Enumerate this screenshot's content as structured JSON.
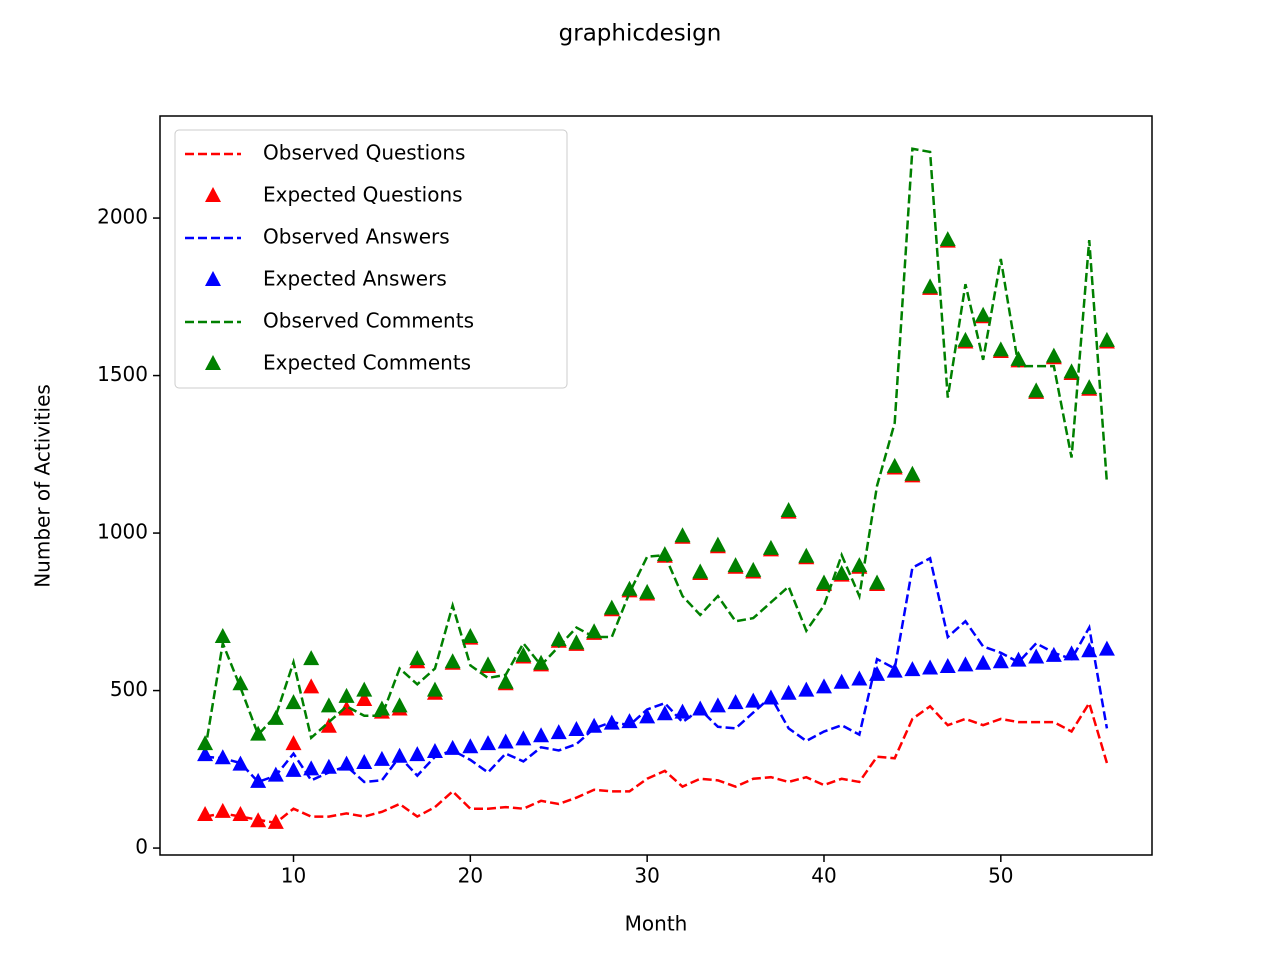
{
  "chart_data": {
    "type": "line",
    "title": "graphicdesign",
    "x_label": "Month",
    "y_label": "Number of Activities",
    "x": [
      5,
      6,
      7,
      8,
      9,
      10,
      11,
      12,
      13,
      14,
      15,
      16,
      17,
      18,
      19,
      20,
      21,
      22,
      23,
      24,
      25,
      26,
      27,
      28,
      29,
      30,
      31,
      32,
      33,
      34,
      35,
      36,
      37,
      38,
      39,
      40,
      41,
      42,
      43,
      44,
      45,
      46,
      47,
      48,
      49,
      50,
      51,
      52,
      53,
      54,
      55,
      56
    ],
    "series": [
      {
        "name": "Observed Questions",
        "color": "#ff0000",
        "linestyle": "dashed",
        "values": [
          100,
          110,
          100,
          90,
          80,
          125,
          100,
          100,
          110,
          100,
          115,
          140,
          100,
          130,
          180,
          125,
          125,
          130,
          125,
          150,
          140,
          160,
          185,
          180,
          180,
          220,
          245,
          195,
          220,
          215,
          195,
          220,
          225,
          210,
          225,
          200,
          220,
          210,
          290,
          285,
          410,
          450,
          390,
          410,
          390,
          410,
          400,
          400,
          400,
          370,
          460,
          270
        ]
      },
      {
        "name": "Expected Questions",
        "color": "#ff0000",
        "marker": "triangle",
        "values": [
          105,
          115,
          105,
          85,
          80,
          330,
          510,
          385,
          440,
          470,
          430,
          440,
          590,
          490,
          585,
          665,
          575,
          520,
          605,
          580,
          655,
          645,
          680,
          755,
          815,
          805,
          925,
          985,
          870,
          955,
          890,
          875,
          945,
          1065,
          920,
          835,
          865,
          890,
          835,
          1205,
          1180,
          1775,
          1925,
          1605,
          1685,
          1575,
          1545,
          1445,
          1555,
          1505,
          1455,
          1605
        ]
      },
      {
        "name": "Observed Answers",
        "color": "#0000ff",
        "linestyle": "dashed",
        "values": [
          290,
          285,
          270,
          210,
          230,
          300,
          215,
          240,
          260,
          210,
          215,
          290,
          230,
          290,
          310,
          280,
          240,
          300,
          275,
          320,
          310,
          330,
          380,
          400,
          390,
          440,
          460,
          400,
          440,
          385,
          380,
          430,
          480,
          380,
          340,
          370,
          390,
          360,
          600,
          570,
          890,
          920,
          670,
          720,
          640,
          620,
          590,
          650,
          620,
          600,
          700,
          380
        ]
      },
      {
        "name": "Expected Answers",
        "color": "#0000ff",
        "marker": "triangle",
        "values": [
          295,
          285,
          265,
          210,
          230,
          245,
          250,
          255,
          265,
          270,
          280,
          290,
          295,
          305,
          315,
          320,
          330,
          335,
          345,
          355,
          365,
          375,
          385,
          395,
          400,
          415,
          425,
          430,
          440,
          450,
          460,
          465,
          475,
          490,
          500,
          510,
          525,
          535,
          550,
          560,
          565,
          570,
          575,
          580,
          585,
          590,
          595,
          605,
          610,
          615,
          625,
          630
        ]
      },
      {
        "name": "Observed Comments",
        "color": "#008000",
        "linestyle": "dashed",
        "values": [
          310,
          650,
          510,
          360,
          420,
          590,
          350,
          400,
          450,
          420,
          420,
          570,
          520,
          570,
          770,
          580,
          540,
          550,
          650,
          580,
          640,
          700,
          670,
          670,
          810,
          925,
          930,
          800,
          740,
          800,
          720,
          730,
          780,
          830,
          690,
          770,
          930,
          800,
          1150,
          1350,
          2220,
          2210,
          1430,
          1790,
          1550,
          1870,
          1530,
          1530,
          1530,
          1240,
          1930,
          1160
        ]
      },
      {
        "name": "Expected Comments",
        "color": "#008000",
        "marker": "triangle",
        "values": [
          330,
          670,
          520,
          360,
          410,
          460,
          600,
          450,
          480,
          500,
          440,
          450,
          600,
          500,
          590,
          670,
          580,
          525,
          610,
          585,
          660,
          650,
          685,
          760,
          820,
          810,
          930,
          990,
          875,
          960,
          895,
          880,
          950,
          1070,
          925,
          840,
          870,
          895,
          840,
          1210,
          1185,
          1780,
          1930,
          1610,
          1690,
          1580,
          1550,
          1450,
          1560,
          1510,
          1460,
          1610
        ]
      }
    ],
    "xlim": [
      2.45,
      58.55
    ],
    "ylim": [
      -22,
      2324
    ],
    "xticks": [
      10,
      20,
      30,
      40,
      50
    ],
    "yticks": [
      0,
      500,
      1000,
      1500,
      2000
    ],
    "legend": "upper left"
  }
}
